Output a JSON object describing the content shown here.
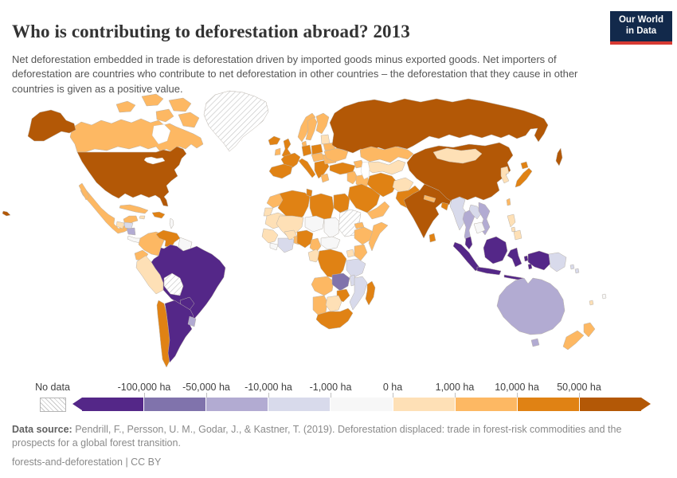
{
  "header": {
    "title": "Who is contributing to deforestation abroad? 2013",
    "subtitle": "Net deforestation embedded in trade is deforestation driven by imported goods minus exported goods. Net importers of deforestation are countries who contribute to net deforestation in other countries – the deforestation that they cause in other countries is given as a positive value.",
    "logo": {
      "line1": "Our World",
      "line2": "in Data",
      "bg_color": "#12294b",
      "accent_color": "#d73a33"
    }
  },
  "legend": {
    "no_data_label": "No data",
    "tick_labels": [
      "-100,000 ha",
      "-50,000 ha",
      "-10,000 ha",
      "-1,000 ha",
      "0 ha",
      "1,000 ha",
      "10,000 ha",
      "50,000 ha"
    ]
  },
  "footer": {
    "source_label": "Data source:",
    "source_text": " Pendrill, F., Persson, U. M., Godar, J., & Kastner, T. (2019). Deforestation displaced: trade in forest-risk commodities and the prospects for a global forest transition.",
    "license_line": "forests-and-deforestation | CC BY"
  },
  "chart_data": {
    "type": "choropleth",
    "title": "Who is contributing to deforestation abroad?",
    "year": 2013,
    "unit": "ha",
    "no_data_color": "hatched-white",
    "bins": [
      {
        "range": "below -100,000 ha",
        "color": "#542788"
      },
      {
        "range": "-100,000 to -50,000 ha",
        "color": "#8073ac"
      },
      {
        "range": "-50,000 to -10,000 ha",
        "color": "#b2abd2"
      },
      {
        "range": "-10,000 to -1,000 ha",
        "color": "#d8daeb"
      },
      {
        "range": "-1,000 to 0 ha",
        "color": "#f7f7f7"
      },
      {
        "range": "0 to 1,000 ha",
        "color": "#fee0b6"
      },
      {
        "range": "1,000 to 10,000 ha",
        "color": "#fdb863"
      },
      {
        "range": "10,000 to 50,000 ha",
        "color": "#e08214"
      },
      {
        "range": "above 50,000 ha",
        "color": "#b35806"
      }
    ],
    "regions": [
      {
        "id": "greenland",
        "name": "Greenland",
        "bin": -1
      },
      {
        "id": "canada",
        "name": "Canada",
        "bin": 6
      },
      {
        "id": "arctic-1",
        "name": "Canada",
        "bin": 6
      },
      {
        "id": "arctic-2",
        "name": "Canada",
        "bin": 6
      },
      {
        "id": "arctic-3",
        "name": "Canada",
        "bin": 6
      },
      {
        "id": "arctic-4",
        "name": "Canada",
        "bin": 6
      },
      {
        "id": "arctic-5",
        "name": "Canada",
        "bin": 6
      },
      {
        "id": "alaska",
        "name": "United States",
        "bin": 8
      },
      {
        "id": "usa",
        "name": "United States",
        "bin": 8
      },
      {
        "id": "hawaii",
        "name": "United States",
        "bin": 8
      },
      {
        "id": "mexico",
        "name": "Mexico",
        "bin": 6
      },
      {
        "id": "baja",
        "name": "Mexico",
        "bin": 6
      },
      {
        "id": "guatemala",
        "name": "Guatemala",
        "bin": 5
      },
      {
        "id": "honduras",
        "name": "Honduras",
        "bin": 3
      },
      {
        "id": "nicaragua",
        "name": "Nicaragua",
        "bin": 2
      },
      {
        "id": "costa-rica-panama",
        "name": "Costa Rica & Panama",
        "bin": 4
      },
      {
        "id": "cuba",
        "name": "Cuba",
        "bin": 6
      },
      {
        "id": "jamaica",
        "name": "Jamaica",
        "bin": 5
      },
      {
        "id": "hispaniola",
        "name": "Dominican Republic & Haiti",
        "bin": 7
      },
      {
        "id": "lesser-antilles",
        "name": "Lesser Antilles",
        "bin": 4
      },
      {
        "id": "colombia",
        "name": "Colombia",
        "bin": 6
      },
      {
        "id": "venezuela",
        "name": "Venezuela",
        "bin": 7
      },
      {
        "id": "guyanas",
        "name": "Guyana & Suriname",
        "bin": 4
      },
      {
        "id": "ecuador",
        "name": "Ecuador",
        "bin": 6
      },
      {
        "id": "peru",
        "name": "Peru",
        "bin": 5
      },
      {
        "id": "brazil",
        "name": "Brazil",
        "bin": 0
      },
      {
        "id": "bolivia",
        "name": "Bolivia",
        "bin": -1
      },
      {
        "id": "paraguay",
        "name": "Paraguay",
        "bin": 0
      },
      {
        "id": "chile",
        "name": "Chile",
        "bin": 7
      },
      {
        "id": "argentina",
        "name": "Argentina",
        "bin": 0
      },
      {
        "id": "uruguay",
        "name": "Uruguay",
        "bin": 2
      },
      {
        "id": "iceland",
        "name": "Iceland",
        "bin": 7
      },
      {
        "id": "uk",
        "name": "United Kingdom",
        "bin": 7
      },
      {
        "id": "ireland",
        "name": "Ireland",
        "bin": 6
      },
      {
        "id": "norway",
        "name": "Norway",
        "bin": 6
      },
      {
        "id": "sweden",
        "name": "Sweden",
        "bin": 6
      },
      {
        "id": "finland",
        "name": "Finland",
        "bin": 6
      },
      {
        "id": "denmark",
        "name": "Denmark",
        "bin": 6
      },
      {
        "id": "baltics",
        "name": "Baltic states",
        "bin": 5
      },
      {
        "id": "belarus",
        "name": "Belarus",
        "bin": 6
      },
      {
        "id": "poland",
        "name": "Poland",
        "bin": 7
      },
      {
        "id": "germany",
        "name": "Germany",
        "bin": 7
      },
      {
        "id": "france",
        "name": "France",
        "bin": 7
      },
      {
        "id": "iberia",
        "name": "Spain & Portugal",
        "bin": 7
      },
      {
        "id": "italy",
        "name": "Italy",
        "bin": 7
      },
      {
        "id": "central-europe",
        "name": "Central Europe",
        "bin": 6
      },
      {
        "id": "balkans",
        "name": "Balkans",
        "bin": 7
      },
      {
        "id": "romania",
        "name": "Romania",
        "bin": 6
      },
      {
        "id": "greece",
        "name": "Greece",
        "bin": 6
      },
      {
        "id": "ukraine",
        "name": "Ukraine",
        "bin": 6
      },
      {
        "id": "russia",
        "name": "Russia",
        "bin": 8
      },
      {
        "id": "sakhalin",
        "name": "Russia",
        "bin": 8
      },
      {
        "id": "kazakhstan",
        "name": "Kazakhstan",
        "bin": 6
      },
      {
        "id": "central-asia",
        "name": "Central Asia",
        "bin": 5
      },
      {
        "id": "caucasus",
        "name": "Caucasus",
        "bin": 6
      },
      {
        "id": "turkey",
        "name": "Turkey",
        "bin": 7
      },
      {
        "id": "levant",
        "name": "Syria & Levant",
        "bin": 6
      },
      {
        "id": "iraq",
        "name": "Iraq",
        "bin": 6
      },
      {
        "id": "iran",
        "name": "Iran",
        "bin": 7
      },
      {
        "id": "saudi-arabia",
        "name": "Saudi Arabia",
        "bin": 7
      },
      {
        "id": "yemen-oman",
        "name": "Yemen & Oman",
        "bin": 6
      },
      {
        "id": "afghanistan",
        "name": "Afghanistan",
        "bin": 5
      },
      {
        "id": "pakistan",
        "name": "Pakistan",
        "bin": 7
      },
      {
        "id": "india",
        "name": "India",
        "bin": 8
      },
      {
        "id": "nepal",
        "name": "Nepal",
        "bin": 6
      },
      {
        "id": "bangladesh",
        "name": "Bangladesh",
        "bin": 7
      },
      {
        "id": "sri-lanka",
        "name": "Sri Lanka",
        "bin": 7
      },
      {
        "id": "china",
        "name": "China",
        "bin": 8
      },
      {
        "id": "mongolia",
        "name": "Mongolia",
        "bin": 5
      },
      {
        "id": "korea",
        "name": "North & South Korea",
        "bin": 5
      },
      {
        "id": "japan-hokkaido",
        "name": "Japan",
        "bin": 7
      },
      {
        "id": "japan-honshu",
        "name": "Japan",
        "bin": 7
      },
      {
        "id": "taiwan",
        "name": "Taiwan",
        "bin": 6
      },
      {
        "id": "myanmar",
        "name": "Myanmar",
        "bin": 3
      },
      {
        "id": "thailand",
        "name": "Thailand",
        "bin": 2
      },
      {
        "id": "laos",
        "name": "Laos",
        "bin": 3
      },
      {
        "id": "vietnam",
        "name": "Vietnam",
        "bin": 2
      },
      {
        "id": "cambodia",
        "name": "Cambodia",
        "bin": 4
      },
      {
        "id": "malay-peninsula",
        "name": "Malaysia",
        "bin": 0
      },
      {
        "id": "sumatra",
        "name": "Indonesia",
        "bin": 0
      },
      {
        "id": "java",
        "name": "Indonesia",
        "bin": 0
      },
      {
        "id": "borneo",
        "name": "Indonesia & Malaysia (Borneo)",
        "bin": 0
      },
      {
        "id": "sulawesi",
        "name": "Indonesia",
        "bin": 0
      },
      {
        "id": "moluccas-1",
        "name": "Indonesia",
        "bin": 0
      },
      {
        "id": "moluccas-2",
        "name": "Indonesia",
        "bin": 0
      },
      {
        "id": "lesser-sunda",
        "name": "Indonesia",
        "bin": 0
      },
      {
        "id": "west-papua",
        "name": "Indonesia (Papua)",
        "bin": 0
      },
      {
        "id": "png",
        "name": "Papua New Guinea",
        "bin": 3
      },
      {
        "id": "solomon-1",
        "name": "Solomon Islands",
        "bin": 3
      },
      {
        "id": "solomon-2",
        "name": "Solomon Islands",
        "bin": 3
      },
      {
        "id": "philippines-luzon",
        "name": "Philippines",
        "bin": 5
      },
      {
        "id": "philippines-visayas",
        "name": "Philippines",
        "bin": 5
      },
      {
        "id": "philippines-mindanao",
        "name": "Philippines",
        "bin": 5
      },
      {
        "id": "australia",
        "name": "Australia",
        "bin": 2
      },
      {
        "id": "tasmania",
        "name": "Australia",
        "bin": 2
      },
      {
        "id": "nz-north",
        "name": "New Zealand",
        "bin": 6
      },
      {
        "id": "nz-south",
        "name": "New Zealand",
        "bin": 6
      },
      {
        "id": "pacific-1",
        "name": "Vanuatu",
        "bin": 5
      },
      {
        "id": "pacific-2",
        "name": "Fiji",
        "bin": 4
      },
      {
        "id": "morocco",
        "name": "Morocco",
        "bin": 6
      },
      {
        "id": "algeria",
        "name": "Algeria",
        "bin": 7
      },
      {
        "id": "tunisia",
        "name": "Tunisia",
        "bin": 7
      },
      {
        "id": "libya",
        "name": "Libya",
        "bin": 7
      },
      {
        "id": "egypt",
        "name": "Egypt",
        "bin": 7
      },
      {
        "id": "western-sahara",
        "name": "Western Sahara",
        "bin": 5
      },
      {
        "id": "mauritania",
        "name": "Mauritania",
        "bin": 5
      },
      {
        "id": "mali",
        "name": "Mali",
        "bin": 5
      },
      {
        "id": "niger",
        "name": "Niger",
        "bin": 4
      },
      {
        "id": "chad",
        "name": "Chad",
        "bin": 4
      },
      {
        "id": "sudan",
        "name": "Sudan",
        "bin": -1
      },
      {
        "id": "eritrea",
        "name": "Eritrea",
        "bin": 6
      },
      {
        "id": "ethiopia",
        "name": "Ethiopia",
        "bin": 6
      },
      {
        "id": "somalia",
        "name": "Somalia",
        "bin": 6
      },
      {
        "id": "senegal-guinea",
        "name": "Senegal & Guinea",
        "bin": 5
      },
      {
        "id": "sierra-leone-liberia",
        "name": "Sierra Leone & Liberia",
        "bin": 4
      },
      {
        "id": "ivory-coast-ghana",
        "name": "Côte d'Ivoire & Ghana",
        "bin": 3
      },
      {
        "id": "burkina-faso",
        "name": "Burkina Faso",
        "bin": 5
      },
      {
        "id": "togo-benin",
        "name": "Togo & Benin",
        "bin": 6
      },
      {
        "id": "nigeria",
        "name": "Nigeria",
        "bin": 7
      },
      {
        "id": "cameroon",
        "name": "Cameroon",
        "bin": 6
      },
      {
        "id": "car",
        "name": "Central African Republic",
        "bin": 4
      },
      {
        "id": "gabon-congo",
        "name": "Gabon & Congo",
        "bin": 5
      },
      {
        "id": "drc",
        "name": "Democratic Republic of Congo",
        "bin": 7
      },
      {
        "id": "uganda",
        "name": "Uganda",
        "bin": 5
      },
      {
        "id": "kenya",
        "name": "Kenya",
        "bin": 6
      },
      {
        "id": "tanzania",
        "name": "Tanzania",
        "bin": 3
      },
      {
        "id": "angola",
        "name": "Angola",
        "bin": 6
      },
      {
        "id": "zambia",
        "name": "Zambia",
        "bin": 1
      },
      {
        "id": "malawi",
        "name": "Malawi",
        "bin": 3
      },
      {
        "id": "mozambique",
        "name": "Mozambique",
        "bin": 3
      },
      {
        "id": "zimbabwe",
        "name": "Zimbabwe",
        "bin": 7
      },
      {
        "id": "namibia",
        "name": "Namibia",
        "bin": 6
      },
      {
        "id": "botswana",
        "name": "Botswana",
        "bin": 5
      },
      {
        "id": "south-africa",
        "name": "South Africa",
        "bin": 7
      },
      {
        "id": "madagascar",
        "name": "Madagascar",
        "bin": 7
      }
    ]
  }
}
